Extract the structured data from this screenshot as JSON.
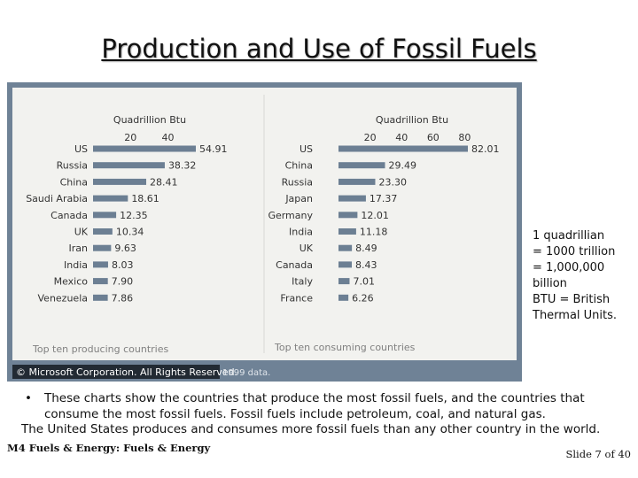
{
  "slide": {
    "title": "Production and Use of Fossil Fuels",
    "note": [
      "1 quadrillian",
      "= 1000 trillion",
      "= 1,000,000",
      "billion",
      "BTU = British",
      "Thermal Units."
    ],
    "bullet_dot": "•",
    "bullet": "These charts show the countries that produce the most fossil fuels, and the countries that consume the most fossil fuels. Fossil fuels include petroleum, coal, and natural gas.",
    "line2": "The United States produces and consumes more fossil fuels than any other country in the world.",
    "footer_left": "M4 Fuels & Energy: Fuels & Energy",
    "footer_right": "Slide 7 of 40"
  },
  "copyright": "© Microsoft Corporation. All Rights Reserved.",
  "copyright_year": "1999 data.",
  "colors": {
    "panel": "#6f8296",
    "chart_bg": "#f2f2ef",
    "bar": "#6c7f93",
    "text": "#333333"
  },
  "chart_data": [
    {
      "type": "bar",
      "orientation": "horizontal",
      "title": "Quadrillion Btu",
      "xlim": [
        0,
        54.91
      ],
      "ticks": [
        20,
        40
      ],
      "caption": "Top ten producing countries",
      "categories": [
        "US",
        "Russia",
        "China",
        "Saudi Arabia",
        "Canada",
        "UK",
        "Iran",
        "India",
        "Mexico",
        "Venezuela"
      ],
      "values": [
        54.91,
        38.32,
        28.41,
        18.61,
        12.35,
        10.34,
        9.63,
        8.03,
        7.9,
        7.86
      ]
    },
    {
      "type": "bar",
      "orientation": "horizontal",
      "title": "Quadrillion Btu",
      "xlim": [
        0,
        82.01
      ],
      "ticks": [
        20,
        40,
        60,
        80
      ],
      "caption": "Top ten consuming countries",
      "categories": [
        "US",
        "China",
        "Russia",
        "Japan",
        "Germany",
        "India",
        "UK",
        "Canada",
        "Italy",
        "France"
      ],
      "values": [
        82.01,
        29.49,
        23.3,
        17.37,
        12.01,
        11.18,
        8.49,
        8.43,
        7.01,
        6.26
      ]
    }
  ]
}
